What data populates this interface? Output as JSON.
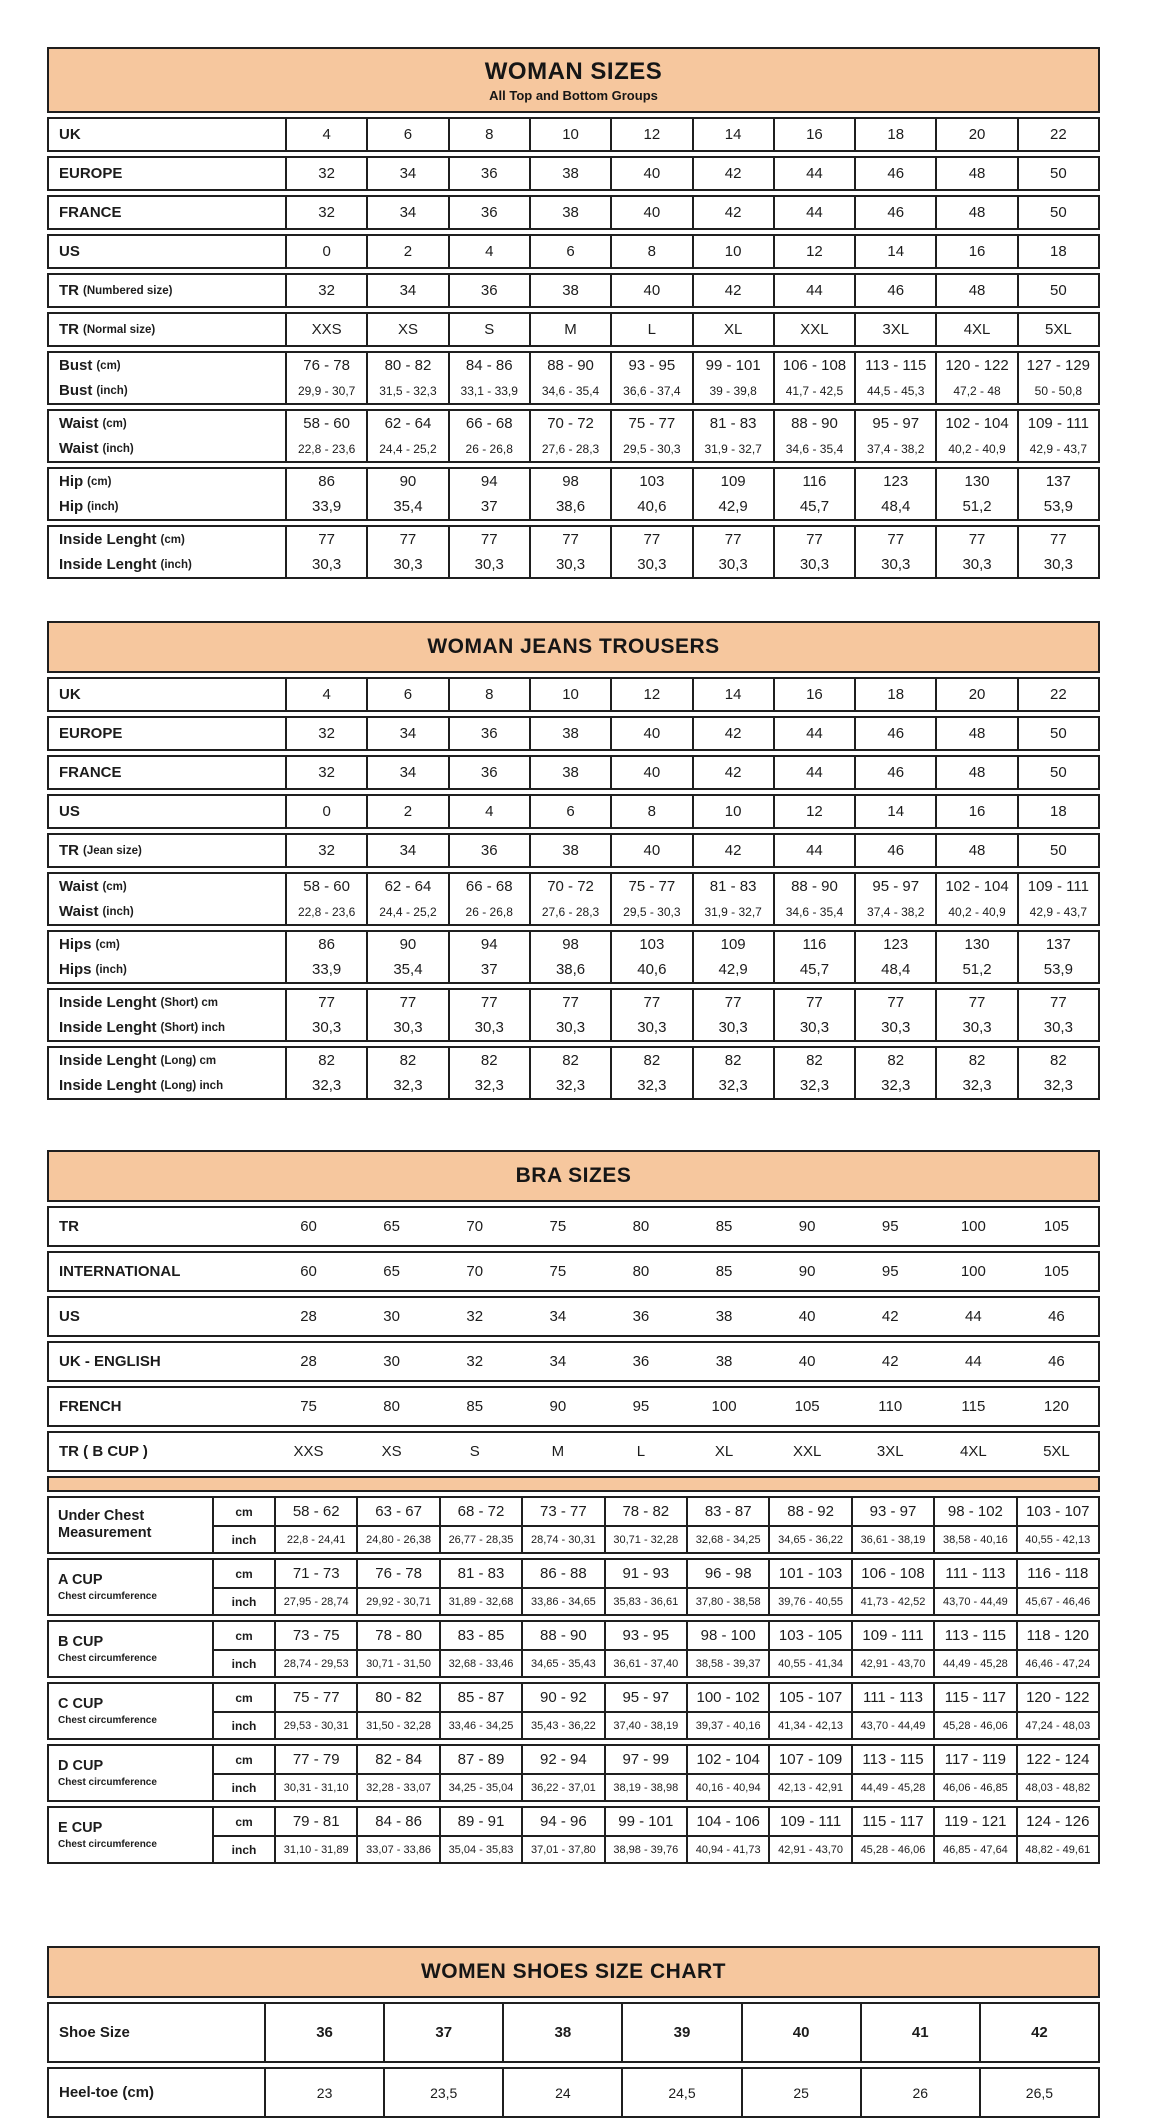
{
  "accent": "#F6C79E",
  "tables": {
    "woman_sizes": {
      "title": "WOMAN SIZES",
      "subtitle": "All Top and Bottom Groups",
      "groups": [
        {
          "rows": [
            {
              "main": "UK",
              "sub": "",
              "values": [
                "4",
                "6",
                "8",
                "10",
                "12",
                "14",
                "16",
                "18",
                "20",
                "22"
              ]
            }
          ]
        },
        {
          "rows": [
            {
              "main": "EUROPE",
              "sub": "",
              "values": [
                "32",
                "34",
                "36",
                "38",
                "40",
                "42",
                "44",
                "46",
                "48",
                "50"
              ]
            }
          ]
        },
        {
          "rows": [
            {
              "main": "FRANCE",
              "sub": "",
              "values": [
                "32",
                "34",
                "36",
                "38",
                "40",
                "42",
                "44",
                "46",
                "48",
                "50"
              ]
            }
          ]
        },
        {
          "rows": [
            {
              "main": "US",
              "sub": "",
              "values": [
                "0",
                "2",
                "4",
                "6",
                "8",
                "10",
                "12",
                "14",
                "16",
                "18"
              ]
            }
          ]
        },
        {
          "rows": [
            {
              "main": "TR",
              "sub": "(Numbered size)",
              "values": [
                "32",
                "34",
                "36",
                "38",
                "40",
                "42",
                "44",
                "46",
                "48",
                "50"
              ]
            }
          ]
        },
        {
          "rows": [
            {
              "main": "TR",
              "sub": "(Normal size)",
              "values": [
                "XXS",
                "XS",
                "S",
                "M",
                "L",
                "XL",
                "XXL",
                "3XL",
                "4XL",
                "5XL"
              ]
            }
          ]
        },
        {
          "rows": [
            {
              "main": "Bust",
              "sub": "(cm)",
              "values": [
                "76 - 78",
                "80 - 82",
                "84 - 86",
                "88 - 90",
                "93 - 95",
                "99 - 101",
                "106 - 108",
                "113 - 115",
                "120 - 122",
                "127 - 129"
              ]
            },
            {
              "main": "Bust",
              "sub": "(inch)",
              "small": true,
              "values": [
                "29,9 - 30,7",
                "31,5 - 32,3",
                "33,1 - 33,9",
                "34,6 - 35,4",
                "36,6 - 37,4",
                "39 - 39,8",
                "41,7 - 42,5",
                "44,5 - 45,3",
                "47,2 - 48",
                "50 - 50,8"
              ]
            }
          ]
        },
        {
          "rows": [
            {
              "main": "Waist",
              "sub": "(cm)",
              "values": [
                "58 - 60",
                "62 - 64",
                "66 - 68",
                "70 - 72",
                "75 - 77",
                "81 - 83",
                "88 - 90",
                "95 - 97",
                "102 - 104",
                "109 - 111"
              ]
            },
            {
              "main": "Waist",
              "sub": "(inch)",
              "small": true,
              "values": [
                "22,8 - 23,6",
                "24,4 - 25,2",
                "26 - 26,8",
                "27,6 - 28,3",
                "29,5 - 30,3",
                "31,9 - 32,7",
                "34,6 - 35,4",
                "37,4 - 38,2",
                "40,2 - 40,9",
                "42,9 - 43,7"
              ]
            }
          ]
        },
        {
          "rows": [
            {
              "main": "Hip",
              "sub": "(cm)",
              "values": [
                "86",
                "90",
                "94",
                "98",
                "103",
                "109",
                "116",
                "123",
                "130",
                "137"
              ]
            },
            {
              "main": "Hip",
              "sub": "(inch)",
              "values": [
                "33,9",
                "35,4",
                "37",
                "38,6",
                "40,6",
                "42,9",
                "45,7",
                "48,4",
                "51,2",
                "53,9"
              ]
            }
          ]
        },
        {
          "rows": [
            {
              "main": "Inside Lenght",
              "sub": "(cm)",
              "values": [
                "77",
                "77",
                "77",
                "77",
                "77",
                "77",
                "77",
                "77",
                "77",
                "77"
              ]
            },
            {
              "main": "Inside Lenght",
              "sub": "(inch)",
              "values": [
                "30,3",
                "30,3",
                "30,3",
                "30,3",
                "30,3",
                "30,3",
                "30,3",
                "30,3",
                "30,3",
                "30,3"
              ]
            }
          ]
        }
      ]
    },
    "jeans": {
      "title": "WOMAN JEANS TROUSERS",
      "groups": [
        {
          "rows": [
            {
              "main": "UK",
              "sub": "",
              "values": [
                "4",
                "6",
                "8",
                "10",
                "12",
                "14",
                "16",
                "18",
                "20",
                "22"
              ]
            }
          ]
        },
        {
          "rows": [
            {
              "main": "EUROPE",
              "sub": "",
              "values": [
                "32",
                "34",
                "36",
                "38",
                "40",
                "42",
                "44",
                "46",
                "48",
                "50"
              ]
            }
          ]
        },
        {
          "rows": [
            {
              "main": "FRANCE",
              "sub": "",
              "values": [
                "32",
                "34",
                "36",
                "38",
                "40",
                "42",
                "44",
                "46",
                "48",
                "50"
              ]
            }
          ]
        },
        {
          "rows": [
            {
              "main": "US",
              "sub": "",
              "values": [
                "0",
                "2",
                "4",
                "6",
                "8",
                "10",
                "12",
                "14",
                "16",
                "18"
              ]
            }
          ]
        },
        {
          "rows": [
            {
              "main": "TR",
              "sub": "(Jean size)",
              "values": [
                "32",
                "34",
                "36",
                "38",
                "40",
                "42",
                "44",
                "46",
                "48",
                "50"
              ]
            }
          ]
        },
        {
          "rows": [
            {
              "main": "Waist",
              "sub": "(cm)",
              "values": [
                "58 - 60",
                "62 - 64",
                "66 - 68",
                "70 - 72",
                "75 - 77",
                "81 - 83",
                "88 - 90",
                "95 - 97",
                "102 - 104",
                "109 - 111"
              ]
            },
            {
              "main": "Waist",
              "sub": "(inch)",
              "small": true,
              "values": [
                "22,8 - 23,6",
                "24,4 - 25,2",
                "26 - 26,8",
                "27,6 - 28,3",
                "29,5 - 30,3",
                "31,9 - 32,7",
                "34,6 - 35,4",
                "37,4 - 38,2",
                "40,2 - 40,9",
                "42,9 - 43,7"
              ]
            }
          ]
        },
        {
          "rows": [
            {
              "main": "Hips",
              "sub": "(cm)",
              "values": [
                "86",
                "90",
                "94",
                "98",
                "103",
                "109",
                "116",
                "123",
                "130",
                "137"
              ]
            },
            {
              "main": "Hips",
              "sub": "(inch)",
              "values": [
                "33,9",
                "35,4",
                "37",
                "38,6",
                "40,6",
                "42,9",
                "45,7",
                "48,4",
                "51,2",
                "53,9"
              ]
            }
          ]
        },
        {
          "rows": [
            {
              "main": "Inside Lenght",
              "sub": "(Short) cm",
              "values": [
                "77",
                "77",
                "77",
                "77",
                "77",
                "77",
                "77",
                "77",
                "77",
                "77"
              ]
            },
            {
              "main": "Inside Lenght",
              "sub": "(Short) inch",
              "values": [
                "30,3",
                "30,3",
                "30,3",
                "30,3",
                "30,3",
                "30,3",
                "30,3",
                "30,3",
                "30,3",
                "30,3"
              ]
            }
          ]
        },
        {
          "rows": [
            {
              "main": "Inside Lenght",
              "sub": "(Long) cm",
              "values": [
                "82",
                "82",
                "82",
                "82",
                "82",
                "82",
                "82",
                "82",
                "82",
                "82"
              ]
            },
            {
              "main": "Inside Lenght",
              "sub": "(Long) inch",
              "values": [
                "32,3",
                "32,3",
                "32,3",
                "32,3",
                "32,3",
                "32,3",
                "32,3",
                "32,3",
                "32,3",
                "32,3"
              ]
            }
          ]
        }
      ]
    },
    "bra": {
      "title": "BRA SIZES",
      "top_groups": [
        {
          "rows": [
            {
              "main": "TR",
              "sub": "",
              "values": [
                "60",
                "65",
                "70",
                "75",
                "80",
                "85",
                "90",
                "95",
                "100",
                "105"
              ]
            }
          ]
        },
        {
          "rows": [
            {
              "main": "INTERNATIONAL",
              "sub": "",
              "values": [
                "60",
                "65",
                "70",
                "75",
                "80",
                "85",
                "90",
                "95",
                "100",
                "105"
              ]
            }
          ]
        },
        {
          "rows": [
            {
              "main": "US",
              "sub": "",
              "values": [
                "28",
                "30",
                "32",
                "34",
                "36",
                "38",
                "40",
                "42",
                "44",
                "46"
              ]
            }
          ]
        },
        {
          "rows": [
            {
              "main": "UK - ENGLISH",
              "sub": "",
              "values": [
                "28",
                "30",
                "32",
                "34",
                "36",
                "38",
                "40",
                "42",
                "44",
                "46"
              ]
            }
          ]
        },
        {
          "rows": [
            {
              "main": "FRENCH",
              "sub": "",
              "values": [
                "75",
                "80",
                "85",
                "90",
                "95",
                "100",
                "105",
                "110",
                "115",
                "120"
              ]
            }
          ]
        },
        {
          "rows": [
            {
              "main": "TR ( B CUP )",
              "sub": "",
              "values": [
                "XXS",
                "XS",
                "S",
                "M",
                "L",
                "XL",
                "XXL",
                "3XL",
                "4XL",
                "5XL"
              ]
            }
          ]
        }
      ],
      "units": {
        "cm": "cm",
        "inch": "inch"
      },
      "cups": [
        {
          "label": "Under Chest Measurement",
          "note": "",
          "cm": [
            "58 - 62",
            "63 - 67",
            "68 - 72",
            "73 - 77",
            "78 - 82",
            "83 - 87",
            "88 - 92",
            "93 - 97",
            "98 - 102",
            "103 - 107"
          ],
          "inch": [
            "22,8 - 24,41",
            "24,80 - 26,38",
            "26,77 - 28,35",
            "28,74 - 30,31",
            "30,71 - 32,28",
            "32,68 - 34,25",
            "34,65 - 36,22",
            "36,61 - 38,19",
            "38,58 - 40,16",
            "40,55 - 42,13"
          ]
        },
        {
          "label": "A CUP",
          "note": "Chest circumference",
          "cm": [
            "71 - 73",
            "76 - 78",
            "81 - 83",
            "86 - 88",
            "91 - 93",
            "96 - 98",
            "101 - 103",
            "106 - 108",
            "111 - 113",
            "116 - 118"
          ],
          "inch": [
            "27,95 - 28,74",
            "29,92 - 30,71",
            "31,89 - 32,68",
            "33,86 - 34,65",
            "35,83 - 36,61",
            "37,80 - 38,58",
            "39,76 - 40,55",
            "41,73 - 42,52",
            "43,70 - 44,49",
            "45,67 - 46,46"
          ]
        },
        {
          "label": "B CUP",
          "note": "Chest circumference",
          "cm": [
            "73 - 75",
            "78 - 80",
            "83 - 85",
            "88 - 90",
            "93 - 95",
            "98 - 100",
            "103 - 105",
            "109 - 111",
            "113 - 115",
            "118 - 120"
          ],
          "inch": [
            "28,74 - 29,53",
            "30,71 - 31,50",
            "32,68 - 33,46",
            "34,65 - 35,43",
            "36,61 - 37,40",
            "38,58 - 39,37",
            "40,55 - 41,34",
            "42,91 - 43,70",
            "44,49 - 45,28",
            "46,46 - 47,24"
          ]
        },
        {
          "label": "C CUP",
          "note": "Chest circumference",
          "cm": [
            "75 - 77",
            "80 - 82",
            "85 - 87",
            "90 - 92",
            "95 - 97",
            "100 - 102",
            "105 - 107",
            "111 - 113",
            "115 - 117",
            "120 - 122"
          ],
          "inch": [
            "29,53 - 30,31",
            "31,50 - 32,28",
            "33,46 - 34,25",
            "35,43 - 36,22",
            "37,40 - 38,19",
            "39,37 - 40,16",
            "41,34 - 42,13",
            "43,70 - 44,49",
            "45,28 - 46,06",
            "47,24 - 48,03"
          ]
        },
        {
          "label": "D CUP",
          "note": "Chest circumference",
          "cm": [
            "77 - 79",
            "82 - 84",
            "87 - 89",
            "92 - 94",
            "97 - 99",
            "102 - 104",
            "107 - 109",
            "113 - 115",
            "117 - 119",
            "122 - 124"
          ],
          "inch": [
            "30,31 - 31,10",
            "32,28 - 33,07",
            "34,25 - 35,04",
            "36,22 - 37,01",
            "38,19 - 38,98",
            "40,16 - 40,94",
            "42,13 - 42,91",
            "44,49 - 45,28",
            "46,06 - 46,85",
            "48,03 - 48,82"
          ]
        },
        {
          "label": "E CUP",
          "note": "Chest circumference",
          "cm": [
            "79 - 81",
            "84 - 86",
            "89 - 91",
            "94 - 96",
            "99 - 101",
            "104 - 106",
            "109 - 111",
            "115 - 117",
            "119 - 121",
            "124 - 126"
          ],
          "inch": [
            "31,10 - 31,89",
            "33,07 - 33,86",
            "35,04 - 35,83",
            "37,01 - 37,80",
            "38,98 - 39,76",
            "40,94 - 41,73",
            "42,91 - 43,70",
            "45,28 - 46,06",
            "46,85 - 47,64",
            "48,82 - 49,61"
          ]
        }
      ]
    },
    "shoes": {
      "title": "WOMEN SHOES SIZE CHART",
      "groups": [
        {
          "rows": [
            {
              "main": "Shoe Size",
              "sub": "",
              "bold": true,
              "values": [
                "36",
                "37",
                "38",
                "39",
                "40",
                "41",
                "42"
              ]
            }
          ]
        },
        {
          "rows": [
            {
              "main": "Heel-toe (cm)",
              "sub": "",
              "values": [
                "23",
                "23,5",
                "24",
                "24,5",
                "25",
                "26",
                "26,5"
              ]
            }
          ]
        }
      ]
    }
  }
}
